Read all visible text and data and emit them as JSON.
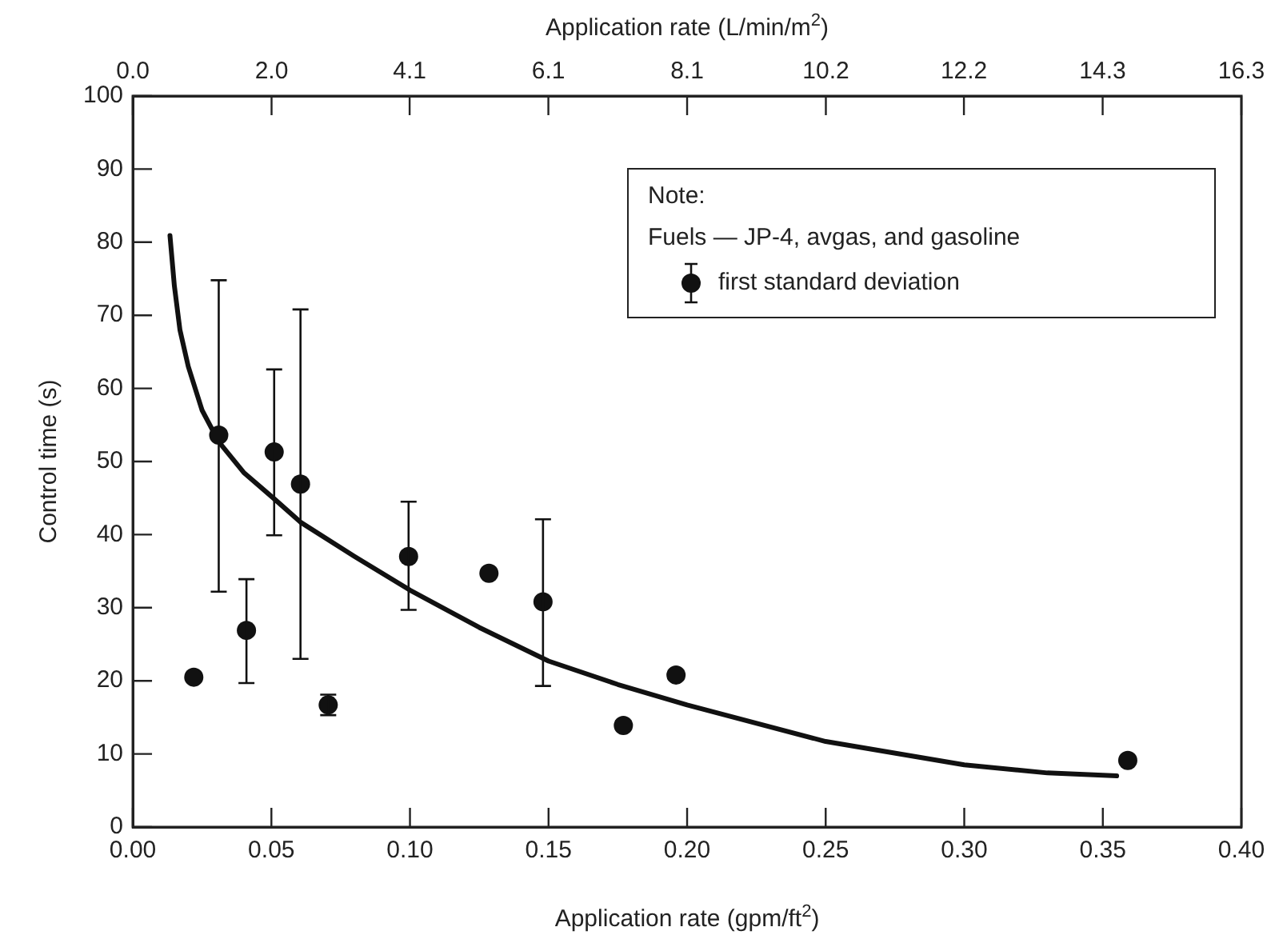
{
  "chart_data": {
    "type": "scatter",
    "xlabel": "Application rate (gpm/ft$^{2}$)",
    "x2label": "Application rate (L/min/m$^{2}$)",
    "ylabel": "Control time (s)",
    "legend_title": "Note:",
    "annotations": [
      "Fuels — JP-4, avgas, and gasoline"
    ],
    "legend": "top right",
    "marker": "circle",
    "xlim": [
      0,
      0.4
    ],
    "xticks": [
      {
        "value": 0,
        "label": "0.00"
      },
      0.05,
      {
        "value": 0.1,
        "label": "0.10"
      },
      0.15,
      {
        "value": 0.2,
        "label": "0.20"
      },
      0.25,
      {
        "value": 0.3,
        "label": "0.30"
      },
      0.35,
      {
        "value": 0.4,
        "label": "0.40"
      }
    ],
    "x2lim": [
      0,
      16.3
    ],
    "x2ticks": [
      {
        "value": 0,
        "label": "0.0"
      },
      {
        "value": 2.04,
        "label": "2.0"
      },
      {
        "value": 4.07,
        "label": "4.1"
      },
      {
        "value": 6.11,
        "label": "6.1"
      },
      {
        "value": 8.15,
        "label": "8.1"
      },
      {
        "value": 10.19,
        "label": "10.2"
      },
      {
        "value": 12.22,
        "label": "12.2"
      },
      {
        "value": 14.26,
        "label": "14.3"
      },
      16.3
    ],
    "ylim": [
      0,
      100
    ],
    "yticks": [
      0,
      10,
      20,
      30,
      40,
      50,
      60,
      70,
      80,
      90,
      100
    ],
    "series": [
      {
        "name": "first standard deviation",
        "color": "#111111",
        "x": [
          0.022,
          0.031,
          0.041,
          0.051,
          0.0605,
          0.0705,
          0.0995,
          0.1285,
          0.148,
          0.177,
          0.196,
          0.359
        ],
        "values": [
          20.5,
          53.6,
          26.9,
          51.3,
          46.9,
          16.7,
          37.0,
          34.7,
          30.8,
          13.9,
          20.8,
          9.1
        ],
        "errors": [
          null,
          [
            32.2,
            74.8
          ],
          [
            19.7,
            33.9
          ],
          [
            39.9,
            62.6
          ],
          [
            23.0,
            70.8
          ],
          [
            15.3,
            18.1
          ],
          [
            29.7,
            44.5
          ],
          null,
          [
            19.3,
            42.1
          ],
          null,
          null,
          null
        ]
      },
      {
        "type": "line",
        "color": "#111111",
        "marker": "none",
        "x": [
          0.0134,
          0.015,
          0.017,
          0.02,
          0.025,
          0.031,
          0.04,
          0.051,
          0.0605,
          0.08,
          0.1,
          0.125,
          0.15,
          0.175,
          0.2,
          0.25,
          0.3,
          0.33,
          0.355
        ],
        "values": [
          80.9,
          74,
          68,
          63,
          57,
          52.7,
          48.5,
          44.9,
          41.7,
          37,
          32.4,
          27.3,
          22.7,
          19.5,
          16.7,
          11.7,
          8.5,
          7.4,
          7.0
        ]
      }
    ]
  }
}
